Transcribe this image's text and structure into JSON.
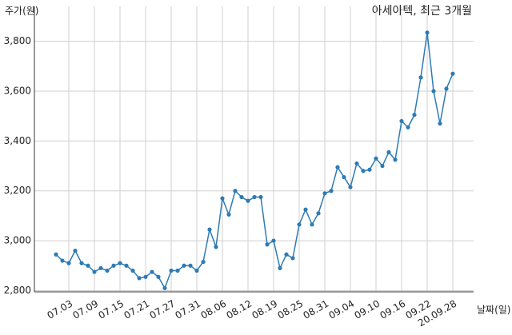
{
  "chart_data": {
    "type": "line",
    "title": "아세아텍, 최근 3개월",
    "y_label": "주가(원)",
    "x_label": "날짜(일)",
    "categories": [
      null,
      null,
      "07.03",
      null,
      null,
      null,
      "07.09",
      null,
      null,
      null,
      "07.15",
      null,
      null,
      null,
      "07.21",
      null,
      null,
      null,
      "07.27",
      null,
      null,
      null,
      "07.31",
      null,
      null,
      null,
      "08.06",
      null,
      null,
      null,
      "08.12",
      null,
      null,
      null,
      "08.19",
      null,
      null,
      null,
      "08.25",
      null,
      null,
      null,
      "08.31",
      null,
      null,
      null,
      "09.04",
      null,
      null,
      null,
      "09.10",
      null,
      null,
      null,
      "09.16",
      null,
      null,
      null,
      "09.22",
      null,
      null,
      null,
      "20.09.28"
    ],
    "values": [
      2945,
      2920,
      2910,
      2960,
      2910,
      2900,
      2875,
      2890,
      2880,
      2900,
      2910,
      2900,
      2880,
      2850,
      2855,
      2875,
      2855,
      2810,
      2880,
      2880,
      2900,
      2900,
      2880,
      2915,
      3045,
      2975,
      3170,
      3105,
      3200,
      3175,
      3160,
      3175,
      3175,
      2985,
      3000,
      2890,
      2945,
      2930,
      3065,
      3125,
      3065,
      3110,
      3190,
      3200,
      3295,
      3255,
      3215,
      3310,
      3280,
      3285,
      3330,
      3300,
      3355,
      3325,
      3480,
      3455,
      3505,
      3655,
      3835,
      3600,
      3470,
      3610,
      3670
    ],
    "color": "#2e7bb4",
    "ylim": [
      2795,
      3940
    ],
    "yticks": [
      {
        "value": 2800,
        "label": "2,800"
      },
      {
        "value": 3000,
        "label": "3,000"
      },
      {
        "value": 3200,
        "label": "3,200"
      },
      {
        "value": 3400,
        "label": "3,400"
      },
      {
        "value": 3600,
        "label": "3,600"
      },
      {
        "value": 3800,
        "label": "3,800"
      }
    ],
    "grid": true
  }
}
